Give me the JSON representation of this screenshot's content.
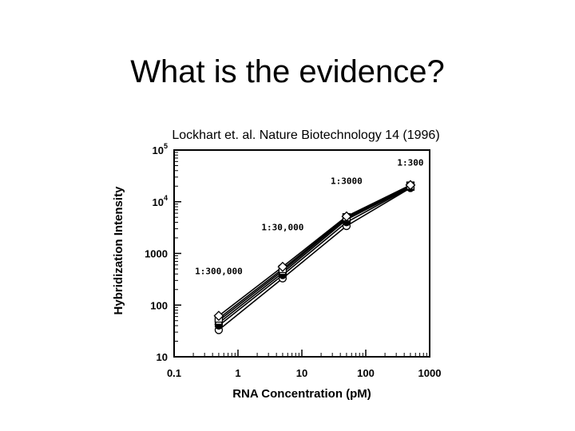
{
  "slide": {
    "title": "What is the evidence?",
    "caption": "Lockhart et. al. Nature Biotechnology 14 (1996)"
  },
  "chart_data": {
    "type": "line",
    "title": "",
    "xlabel": "RNA Concentration (pM)",
    "ylabel": "Hybridization Intensity",
    "x_scale": "log",
    "y_scale": "log",
    "xlim": [
      0.1,
      1000
    ],
    "ylim": [
      10,
      100000
    ],
    "x_tick_labels": [
      "0.1",
      "1",
      "10",
      "100",
      "1000"
    ],
    "y_tick_labels": [
      {
        "base": "10",
        "sup": "5"
      },
      {
        "base": "10",
        "sup": "4"
      },
      {
        "base": "1000",
        "sup": ""
      },
      {
        "base": "100",
        "sup": ""
      },
      {
        "base": "10",
        "sup": ""
      }
    ],
    "annotations": [
      {
        "text": "1:300",
        "x": 500,
        "y": 50000
      },
      {
        "text": "1:3000",
        "x": 50,
        "y": 22000
      },
      {
        "text": "1:30,000",
        "x": 5,
        "y": 2800
      },
      {
        "text": "1:300,000",
        "x": 0.5,
        "y": 400
      }
    ],
    "grid": false,
    "legend": "none",
    "x": [
      0.5,
      5,
      50,
      500
    ],
    "series": [
      {
        "marker": "circle",
        "values": [
          33,
          330,
          3400,
          18500
        ]
      },
      {
        "marker": "circle-filled",
        "values": [
          40,
          380,
          4000,
          19000
        ]
      },
      {
        "marker": "square-filled",
        "values": [
          45,
          420,
          4500,
          19500
        ]
      },
      {
        "marker": "triangle",
        "values": [
          50,
          460,
          4800,
          20000
        ]
      },
      {
        "marker": "square",
        "values": [
          55,
          500,
          5000,
          20500
        ]
      },
      {
        "marker": "diamond",
        "values": [
          62,
          550,
          5200,
          21000
        ]
      }
    ]
  }
}
